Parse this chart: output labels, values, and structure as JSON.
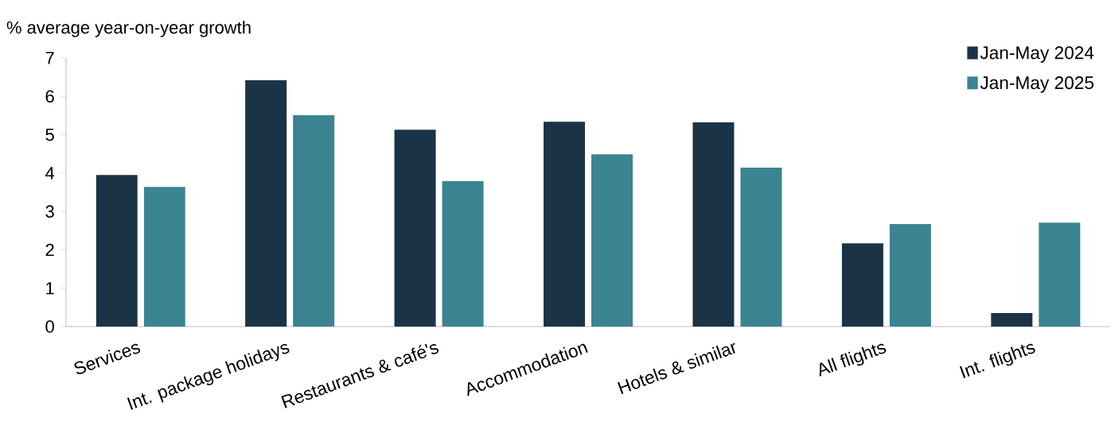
{
  "chart_data": {
    "type": "bar",
    "ylabel": "% average year-on-year growth",
    "categories": [
      "Services",
      "Int. package holidays",
      "Restaurants & café's",
      "Accommodation",
      "Hotels & similar",
      "All flights",
      "Int. flights"
    ],
    "series": [
      {
        "name": "Jan-May 2024",
        "color": "#1b3346",
        "values": [
          3.95,
          6.42,
          5.13,
          5.34,
          5.32,
          2.17,
          0.35
        ]
      },
      {
        "name": "Jan-May 2025",
        "color": "#3b8491",
        "values": [
          3.64,
          5.51,
          3.79,
          4.49,
          4.14,
          2.67,
          2.71
        ]
      }
    ],
    "ylim": [
      0,
      7
    ],
    "yticks": [
      0,
      1,
      2,
      3,
      4,
      5,
      6,
      7
    ],
    "grid": false,
    "legend": "top right"
  }
}
